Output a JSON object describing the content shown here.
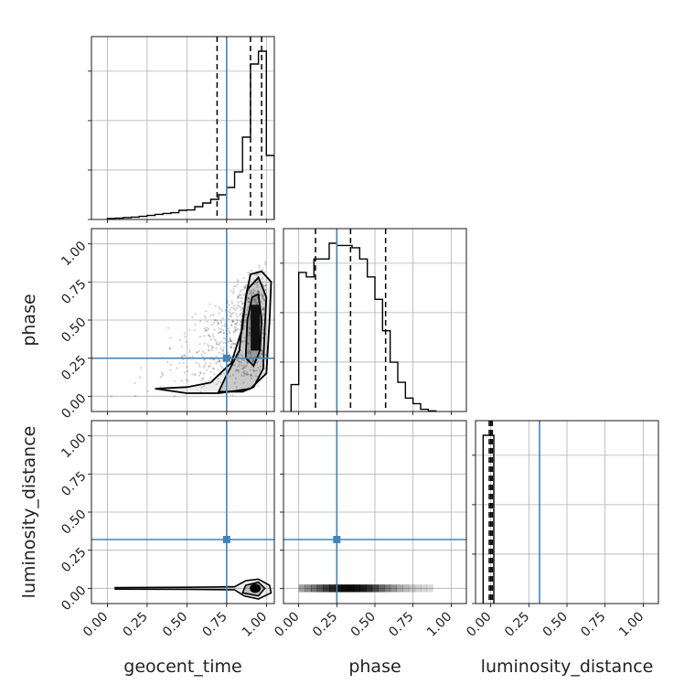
{
  "chart_data": {
    "type": "corner",
    "parameters": [
      "geocent_time",
      "phase",
      "luminosity_distance"
    ],
    "x_tick_labels": [
      "0.00",
      "0.25",
      "0.50",
      "0.75",
      "1.00"
    ],
    "y_tick_labels": [
      "0.00",
      "0.25",
      "0.50",
      "0.75",
      "1.00"
    ],
    "ticks": [
      0,
      0.25,
      0.5,
      0.75,
      1.0
    ],
    "axis_ranges": {
      "geocent_time": [
        -0.1,
        1.05
      ],
      "phase": [
        -0.1,
        1.1
      ],
      "luminosity_distance": [
        -0.1,
        1.1
      ]
    },
    "truths": {
      "geocent_time": 0.75,
      "phase": 0.25,
      "luminosity_distance": 0.32
    },
    "truth_color": "#4682b4",
    "line_color": "#000000",
    "grid": true,
    "histograms": {
      "geocent_time": {
        "edges": [
          0.0,
          0.05,
          0.1,
          0.15,
          0.2,
          0.25,
          0.3,
          0.35,
          0.4,
          0.45,
          0.5,
          0.55,
          0.6,
          0.65,
          0.7,
          0.75,
          0.8,
          0.85,
          0.9,
          0.95,
          1.0,
          1.05
        ],
        "counts": [
          0.005,
          0.007,
          0.01,
          0.013,
          0.017,
          0.022,
          0.028,
          0.033,
          0.037,
          0.05,
          0.052,
          0.07,
          0.09,
          0.11,
          0.135,
          0.175,
          0.26,
          0.45,
          0.85,
          0.92,
          0.35
        ],
        "quantiles": [
          0.69,
          0.9,
          0.97
        ]
      },
      "phase": {
        "edges": [
          -0.05,
          0.0,
          0.05,
          0.1,
          0.15,
          0.2,
          0.25,
          0.3,
          0.35,
          0.4,
          0.45,
          0.5,
          0.55,
          0.6,
          0.65,
          0.7,
          0.75,
          0.8,
          0.85,
          0.9
        ],
        "counts": [
          0.12,
          0.62,
          0.6,
          0.68,
          0.68,
          0.75,
          0.74,
          0.74,
          0.73,
          0.68,
          0.6,
          0.5,
          0.36,
          0.22,
          0.13,
          0.06,
          0.035,
          0.01,
          0.003
        ],
        "quantiles": [
          0.11,
          0.34,
          0.57
        ]
      },
      "luminosity_distance": {
        "edges": [
          -0.05,
          0.0,
          0.02
        ],
        "counts": [
          0.92,
          0.92
        ],
        "quantiles": [
          -0.01,
          0.0,
          0.01
        ]
      }
    },
    "contours": {
      "geocent_time_vs_phase": {
        "levels": [
          [
            [
              0.3,
              0.05
            ],
            [
              0.5,
              0.06
            ],
            [
              0.65,
              0.09
            ],
            [
              0.78,
              0.22
            ],
            [
              0.85,
              0.45
            ],
            [
              0.87,
              0.65
            ],
            [
              0.9,
              0.8
            ],
            [
              0.97,
              0.82
            ],
            [
              1.03,
              0.75
            ],
            [
              1.02,
              0.5
            ],
            [
              1.0,
              0.15
            ],
            [
              0.9,
              0.05
            ],
            [
              0.7,
              0.02
            ],
            [
              0.5,
              0.02
            ]
          ],
          [
            [
              0.7,
              0.03
            ],
            [
              0.75,
              0.14
            ],
            [
              0.83,
              0.3
            ],
            [
              0.85,
              0.5
            ],
            [
              0.88,
              0.7
            ],
            [
              0.95,
              0.78
            ],
            [
              1.0,
              0.65
            ],
            [
              0.99,
              0.45
            ],
            [
              0.98,
              0.18
            ],
            [
              0.92,
              0.06
            ],
            [
              0.85,
              0.03
            ]
          ],
          [
            [
              0.87,
              0.25
            ],
            [
              0.88,
              0.5
            ],
            [
              0.91,
              0.65
            ],
            [
              0.95,
              0.67
            ],
            [
              0.97,
              0.5
            ],
            [
              0.96,
              0.3
            ],
            [
              0.92,
              0.2
            ]
          ]
        ],
        "density_center": [
          0.93,
          0.45
        ]
      },
      "geocent_time_vs_luminosity_distance": {
        "levels": [
          [
            [
              0.05,
              -0.005
            ],
            [
              0.5,
              -0.007
            ],
            [
              0.8,
              -0.01
            ],
            [
              0.86,
              -0.05
            ],
            [
              0.95,
              -0.07
            ],
            [
              1.03,
              -0.03
            ],
            [
              1.02,
              0.02
            ],
            [
              0.95,
              0.06
            ],
            [
              0.87,
              0.05
            ],
            [
              0.8,
              0.01
            ],
            [
              0.5,
              0.007
            ],
            [
              0.05,
              0.005
            ]
          ],
          [
            [
              0.85,
              -0.03
            ],
            [
              0.95,
              -0.05
            ],
            [
              0.99,
              0.0
            ],
            [
              0.95,
              0.04
            ],
            [
              0.87,
              0.02
            ]
          ]
        ],
        "density_center": [
          0.93,
          0.0
        ]
      },
      "phase_vs_luminosity_distance": {
        "band": [
          0.0,
          0.88
        ],
        "density_center": [
          0.35,
          0.0
        ]
      }
    }
  }
}
